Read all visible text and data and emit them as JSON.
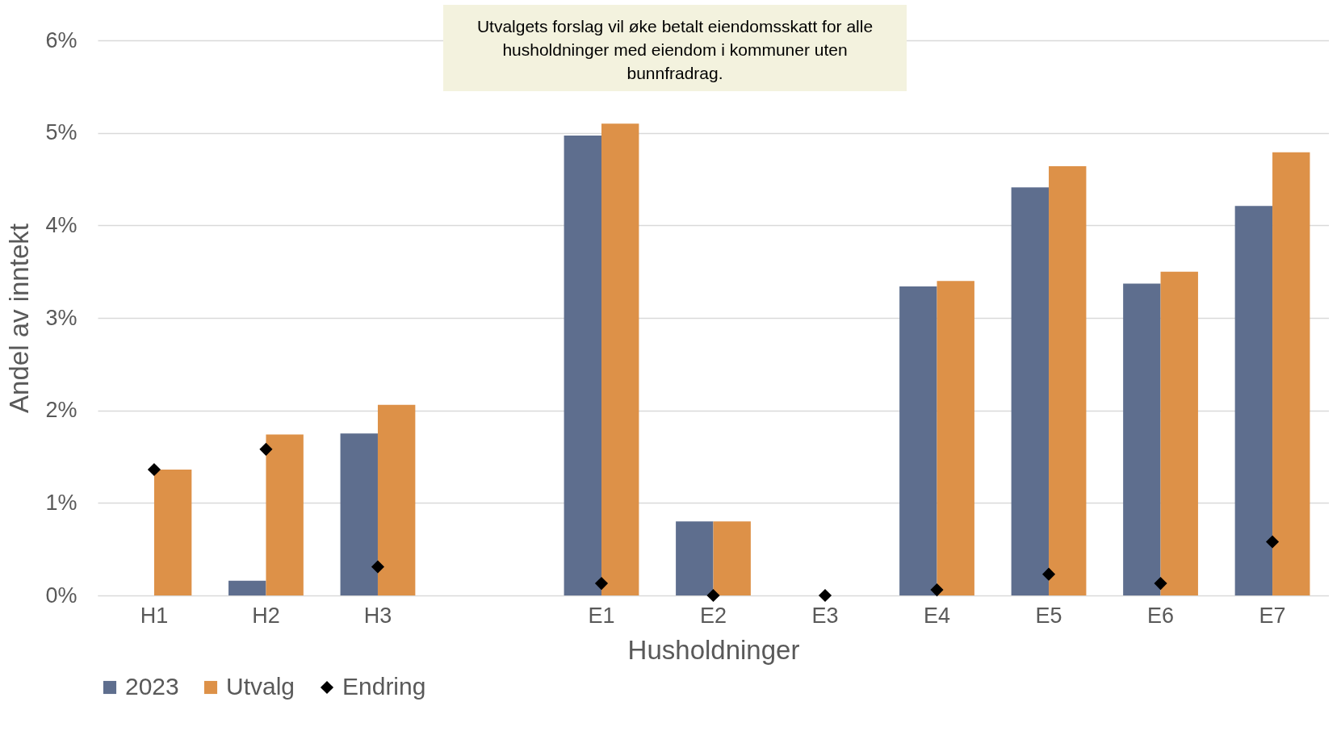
{
  "chart_data": {
    "type": "bar",
    "xlabel": "Husholdninger",
    "ylabel": "Andel av inntekt",
    "annotations": [
      "Utvalgets forslag vil øke betalt eiendomsskatt for alle husholdninger med eiendom i kommuner uten bunnfradrag."
    ],
    "categories": [
      "H1",
      "H2",
      "H3",
      null,
      "E1",
      "E2",
      "E3",
      "E4",
      "E5",
      "E6",
      "E7"
    ],
    "series": [
      {
        "name": "2023",
        "color": "#5e6e8e",
        "values": [
          0,
          0.16,
          1.75,
          null,
          4.97,
          0.8,
          0,
          3.34,
          4.41,
          3.37,
          4.21
        ]
      },
      {
        "name": "Utvalg",
        "color": "#dd9148",
        "values": [
          1.36,
          1.74,
          2.06,
          null,
          5.1,
          0.8,
          0,
          3.4,
          4.64,
          3.5,
          4.79
        ]
      },
      {
        "name": "Endring",
        "type": "scatter",
        "color": "#000000",
        "marker": "diamond",
        "values": [
          1.36,
          1.58,
          0.31,
          null,
          0.13,
          0,
          0,
          0.06,
          0.23,
          0.13,
          0.58
        ]
      }
    ],
    "ylim": [
      0,
      6
    ],
    "yticks": [
      {
        "value": 0,
        "label": "0%"
      },
      {
        "value": 1,
        "label": "1%"
      },
      {
        "value": 2,
        "label": "2%"
      },
      {
        "value": 3,
        "label": "3%"
      },
      {
        "value": 4,
        "label": "4%"
      },
      {
        "value": 5,
        "label": "5%"
      },
      {
        "value": 6,
        "label": "6%"
      }
    ],
    "grid": "y",
    "legend": "bottom"
  }
}
